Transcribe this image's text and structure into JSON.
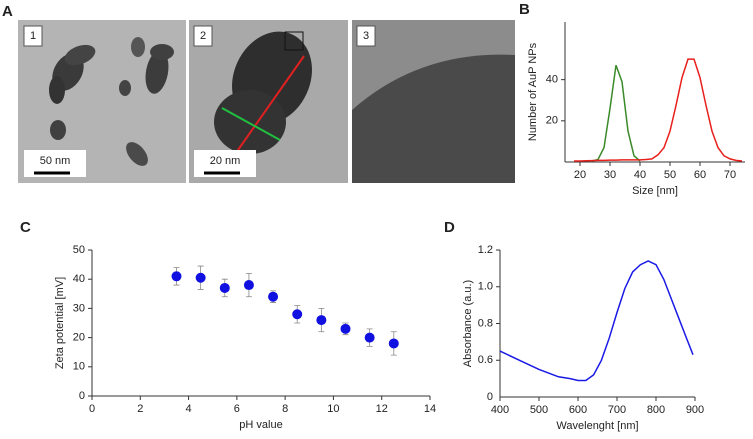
{
  "figure_labels": [
    "A",
    "B",
    "C",
    "D"
  ],
  "images": [
    {
      "label": "1",
      "scale_bar": "50 nm"
    },
    {
      "label": "2",
      "scale_bar": "20 nm"
    },
    {
      "label": "3"
    }
  ],
  "chart_data": [
    {
      "type": "line",
      "x_label": "Size [nm]",
      "y_label": "Number of AuP NPs",
      "x": [
        18,
        20,
        22,
        24,
        26,
        28,
        30,
        32,
        34,
        36,
        38,
        40,
        42,
        44,
        46,
        48,
        50,
        52,
        54,
        56,
        58,
        60,
        62,
        64,
        66,
        68,
        70,
        72,
        74
      ],
      "series": [
        {
          "color": "#3a8a2a",
          "values": [
            null,
            null,
            null,
            0.5,
            1.2,
            7,
            26,
            47,
            39,
            15,
            3,
            0.5,
            null,
            null,
            null,
            null,
            null,
            null,
            null,
            null,
            null,
            null,
            null,
            null,
            null,
            null,
            null,
            null,
            null
          ]
        },
        {
          "color": "#e8201c",
          "values": [
            0.5,
            0.5,
            0.6,
            0.7,
            0.8,
            0.8,
            0.9,
            0.9,
            1,
            1,
            1,
            1,
            1.2,
            1.5,
            3.5,
            7,
            15,
            27.5,
            41,
            50,
            50,
            41,
            27.5,
            15,
            7,
            3,
            1.5,
            0.8,
            0.5
          ]
        }
      ],
      "xlim": [
        15,
        75
      ],
      "xticks": [
        20,
        30,
        40,
        50,
        60,
        70
      ],
      "ylim": [
        0,
        68
      ],
      "yticks": [
        20,
        40
      ]
    },
    {
      "type": "scatter",
      "x_label": "pH value",
      "y_label": "Zeta potential [mV]",
      "color": "#1010e0",
      "x": [
        3.5,
        4.5,
        5.5,
        6.5,
        7.5,
        8.5,
        9.5,
        10.5,
        11.5,
        12.5
      ],
      "values": [
        41,
        40.5,
        37,
        38,
        34,
        28,
        26,
        23,
        20,
        18
      ],
      "errors": [
        3,
        4,
        3,
        4,
        2,
        3,
        4,
        2,
        3,
        4
      ],
      "xlim": [
        0,
        14
      ],
      "xticks": [
        0,
        2,
        4,
        6,
        8,
        10,
        12,
        14
      ],
      "ylim": [
        0,
        50
      ],
      "yticks": [
        0,
        10,
        20,
        30,
        40,
        50
      ]
    },
    {
      "type": "line",
      "x_label": "Wavelenght [nm]",
      "y_label": "Absorbance (a.u.)",
      "x": [
        400,
        450,
        500,
        550,
        580,
        600,
        620,
        640,
        660,
        680,
        700,
        720,
        740,
        760,
        780,
        800,
        820,
        840,
        860,
        880,
        895
      ],
      "series": [
        {
          "color": "#1a1ae6",
          "values": [
            0.65,
            0.6,
            0.55,
            0.51,
            0.5,
            0.49,
            0.49,
            0.52,
            0.6,
            0.72,
            0.86,
            0.99,
            1.08,
            1.12,
            1.14,
            1.12,
            1.04,
            0.93,
            0.82,
            0.71,
            0.63
          ]
        }
      ],
      "xlim": [
        400,
        900
      ],
      "xticks": [
        400,
        500,
        600,
        700,
        800,
        900
      ],
      "ylim": [
        0.4,
        1.2
      ],
      "yticks": [
        0.6,
        0.8,
        {
          "value": 1,
          "label": "1.0"
        },
        1.2
      ],
      "y_origin_label": "0"
    }
  ]
}
